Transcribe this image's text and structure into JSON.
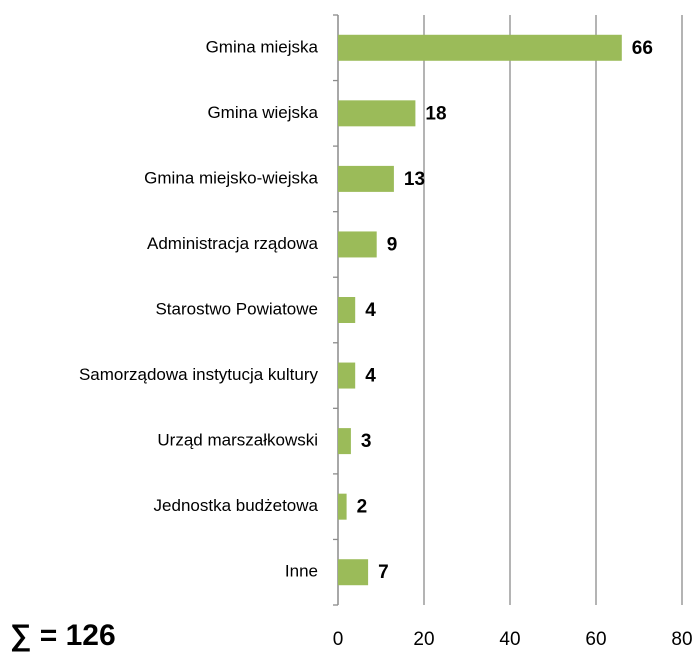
{
  "chart_data": {
    "type": "bar",
    "orientation": "horizontal",
    "categories": [
      "Gmina miejska",
      "Gmina wiejska",
      "Gmina miejsko-wiejska",
      "Administracja rządowa",
      "Starostwo Powiatowe",
      "Samorządowa instytucja kultury",
      "Urząd marszałkowski",
      "Jednostka budżetowa",
      "Inne"
    ],
    "values": [
      66,
      18,
      13,
      9,
      4,
      4,
      3,
      2,
      7
    ],
    "color": "#9bbb59",
    "xlim": [
      0,
      80
    ],
    "xticks": [
      0,
      20,
      40,
      60,
      80
    ],
    "grid": true,
    "annotation": "∑ = 126"
  }
}
